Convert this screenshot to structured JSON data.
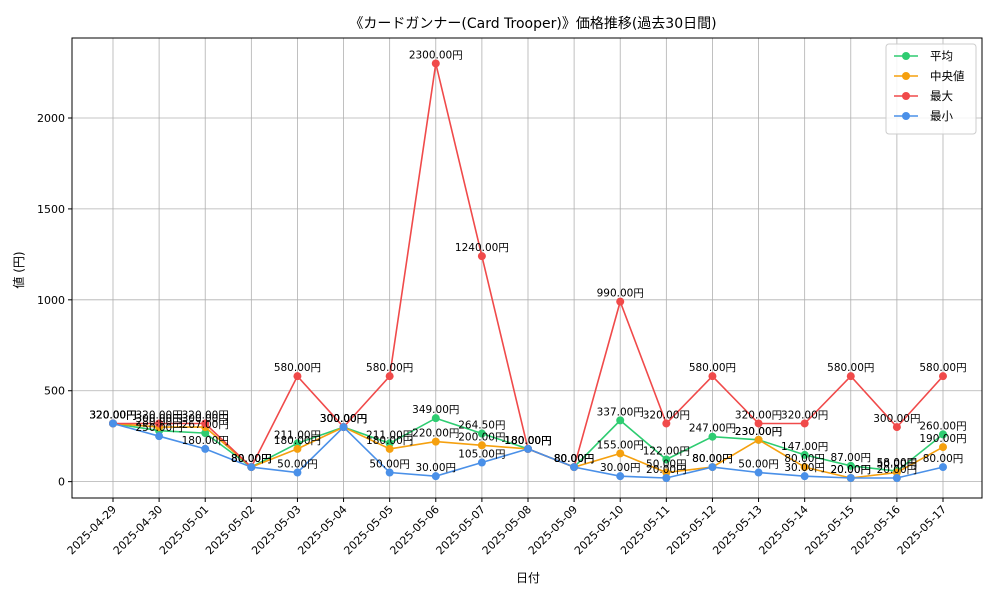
{
  "chart_data": {
    "type": "line",
    "title": "《カードガンナー(Card Trooper)》価格推移(過去30日間)",
    "xlabel": "日付",
    "ylabel": "値 (円)",
    "ylim": [
      -90,
      2440
    ],
    "yticks": [
      0,
      500,
      1000,
      1500,
      2000
    ],
    "grid": true,
    "legend_position": "top-right",
    "label_suffix": "円",
    "categories": [
      "2025-04-29",
      "2025-04-30",
      "2025-05-01",
      "2025-05-02",
      "2025-05-03",
      "2025-05-04",
      "2025-05-05",
      "2025-05-06",
      "2025-05-07",
      "2025-05-08",
      "2025-05-09",
      "2025-05-10",
      "2025-05-11",
      "2025-05-12",
      "2025-05-13",
      "2025-05-14",
      "2025-05-15",
      "2025-05-16",
      "2025-05-17"
    ],
    "series": [
      {
        "name": "平均",
        "color": "#2ecc71",
        "values": [
          320,
          280,
          267,
          80,
          211,
          300,
          211,
          349,
          264.5,
          180,
          80,
          337,
          122,
          247,
          230,
          147,
          87,
          58,
          260
        ]
      },
      {
        "name": "中央値",
        "color": "#f5a00e",
        "values": [
          320,
          300,
          300,
          80,
          180,
          300,
          180,
          220,
          200,
          180,
          80,
          155,
          50,
          80,
          230,
          80,
          20,
          50,
          190
        ]
      },
      {
        "name": "最大",
        "color": "#f04a4a",
        "values": [
          320,
          320,
          320,
          80,
          580,
          300,
          580,
          2300,
          1240,
          180,
          80,
          990,
          320,
          580,
          320,
          320,
          580,
          300,
          580
        ]
      },
      {
        "name": "最小",
        "color": "#4a90e8",
        "values": [
          320,
          250,
          180,
          80,
          50,
          300,
          50,
          30,
          105,
          180,
          80,
          30,
          20,
          80,
          50,
          30,
          20,
          20,
          80
        ]
      }
    ]
  }
}
